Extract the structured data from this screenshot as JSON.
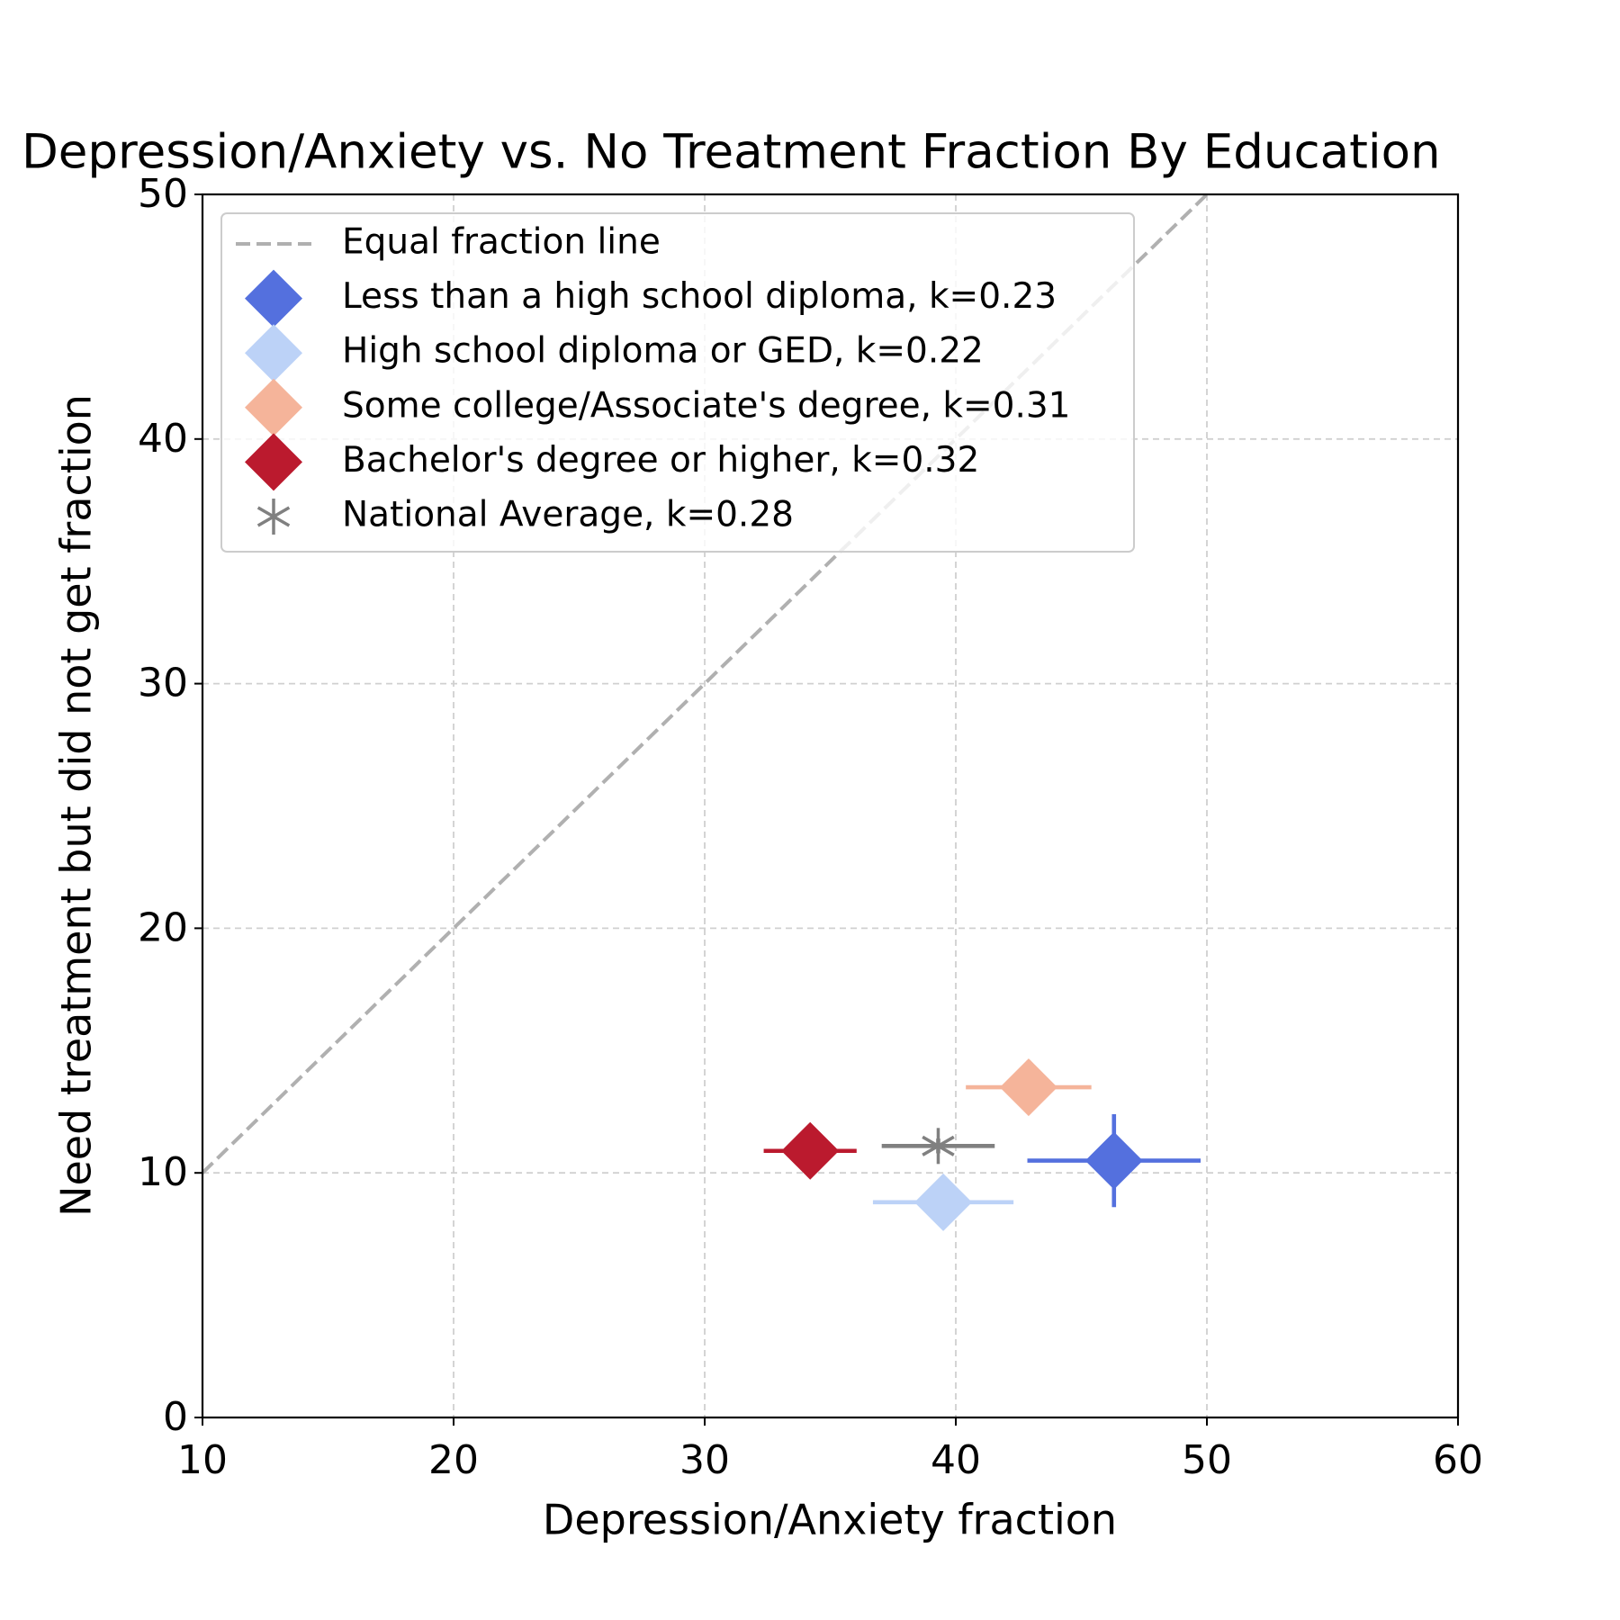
{
  "chart_data": {
    "type": "scatter",
    "title": "Depression/Anxiety vs. No Treatment Fraction By Education",
    "x_label": "Depression/Anxiety fraction",
    "y_label": "Need treatment but did not get fraction",
    "xlim": [
      10,
      60
    ],
    "xticks": [
      10,
      20,
      30,
      40,
      50,
      60
    ],
    "ylim": [
      0,
      50
    ],
    "yticks": [
      0,
      10,
      20,
      30,
      40,
      50
    ],
    "grid": true,
    "legend": "upper left",
    "reference_line": {
      "name": "Equal fraction line",
      "color": "#b0b0b0",
      "x": [
        10,
        50
      ],
      "values": [
        10,
        50
      ]
    },
    "series": [
      {
        "name": "Less than a high school diploma, k=0.23",
        "color": "#5470de",
        "marker": "diamond",
        "x": [
          46.3
        ],
        "values": [
          10.5
        ],
        "xerr": [
          3.45
        ],
        "yerr": [
          1.9
        ]
      },
      {
        "name": "High school diploma or GED, k=0.22",
        "color": "#bcd2f7",
        "marker": "diamond",
        "x": [
          39.5
        ],
        "values": [
          8.8
        ],
        "xerr": [
          2.8
        ],
        "yerr": [
          0.2
        ]
      },
      {
        "name": "Some college/Associate's degree, k=0.31",
        "color": "#f5b49a",
        "marker": "diamond",
        "x": [
          42.9
        ],
        "values": [
          13.5
        ],
        "xerr": [
          2.5
        ],
        "yerr": [
          1.1
        ]
      },
      {
        "name": "Bachelor's degree or higher, k=0.32",
        "color": "#bb1a2e",
        "marker": "diamond",
        "x": [
          34.2
        ],
        "values": [
          10.9
        ],
        "xerr": [
          1.85
        ],
        "yerr": [
          0.2
        ]
      },
      {
        "name": "National Average, k=0.28",
        "color": "#808080",
        "marker": "asterisk",
        "x": [
          39.3
        ],
        "values": [
          11.1
        ],
        "xerr": [
          2.25
        ],
        "yerr": [
          0.3
        ]
      }
    ]
  }
}
